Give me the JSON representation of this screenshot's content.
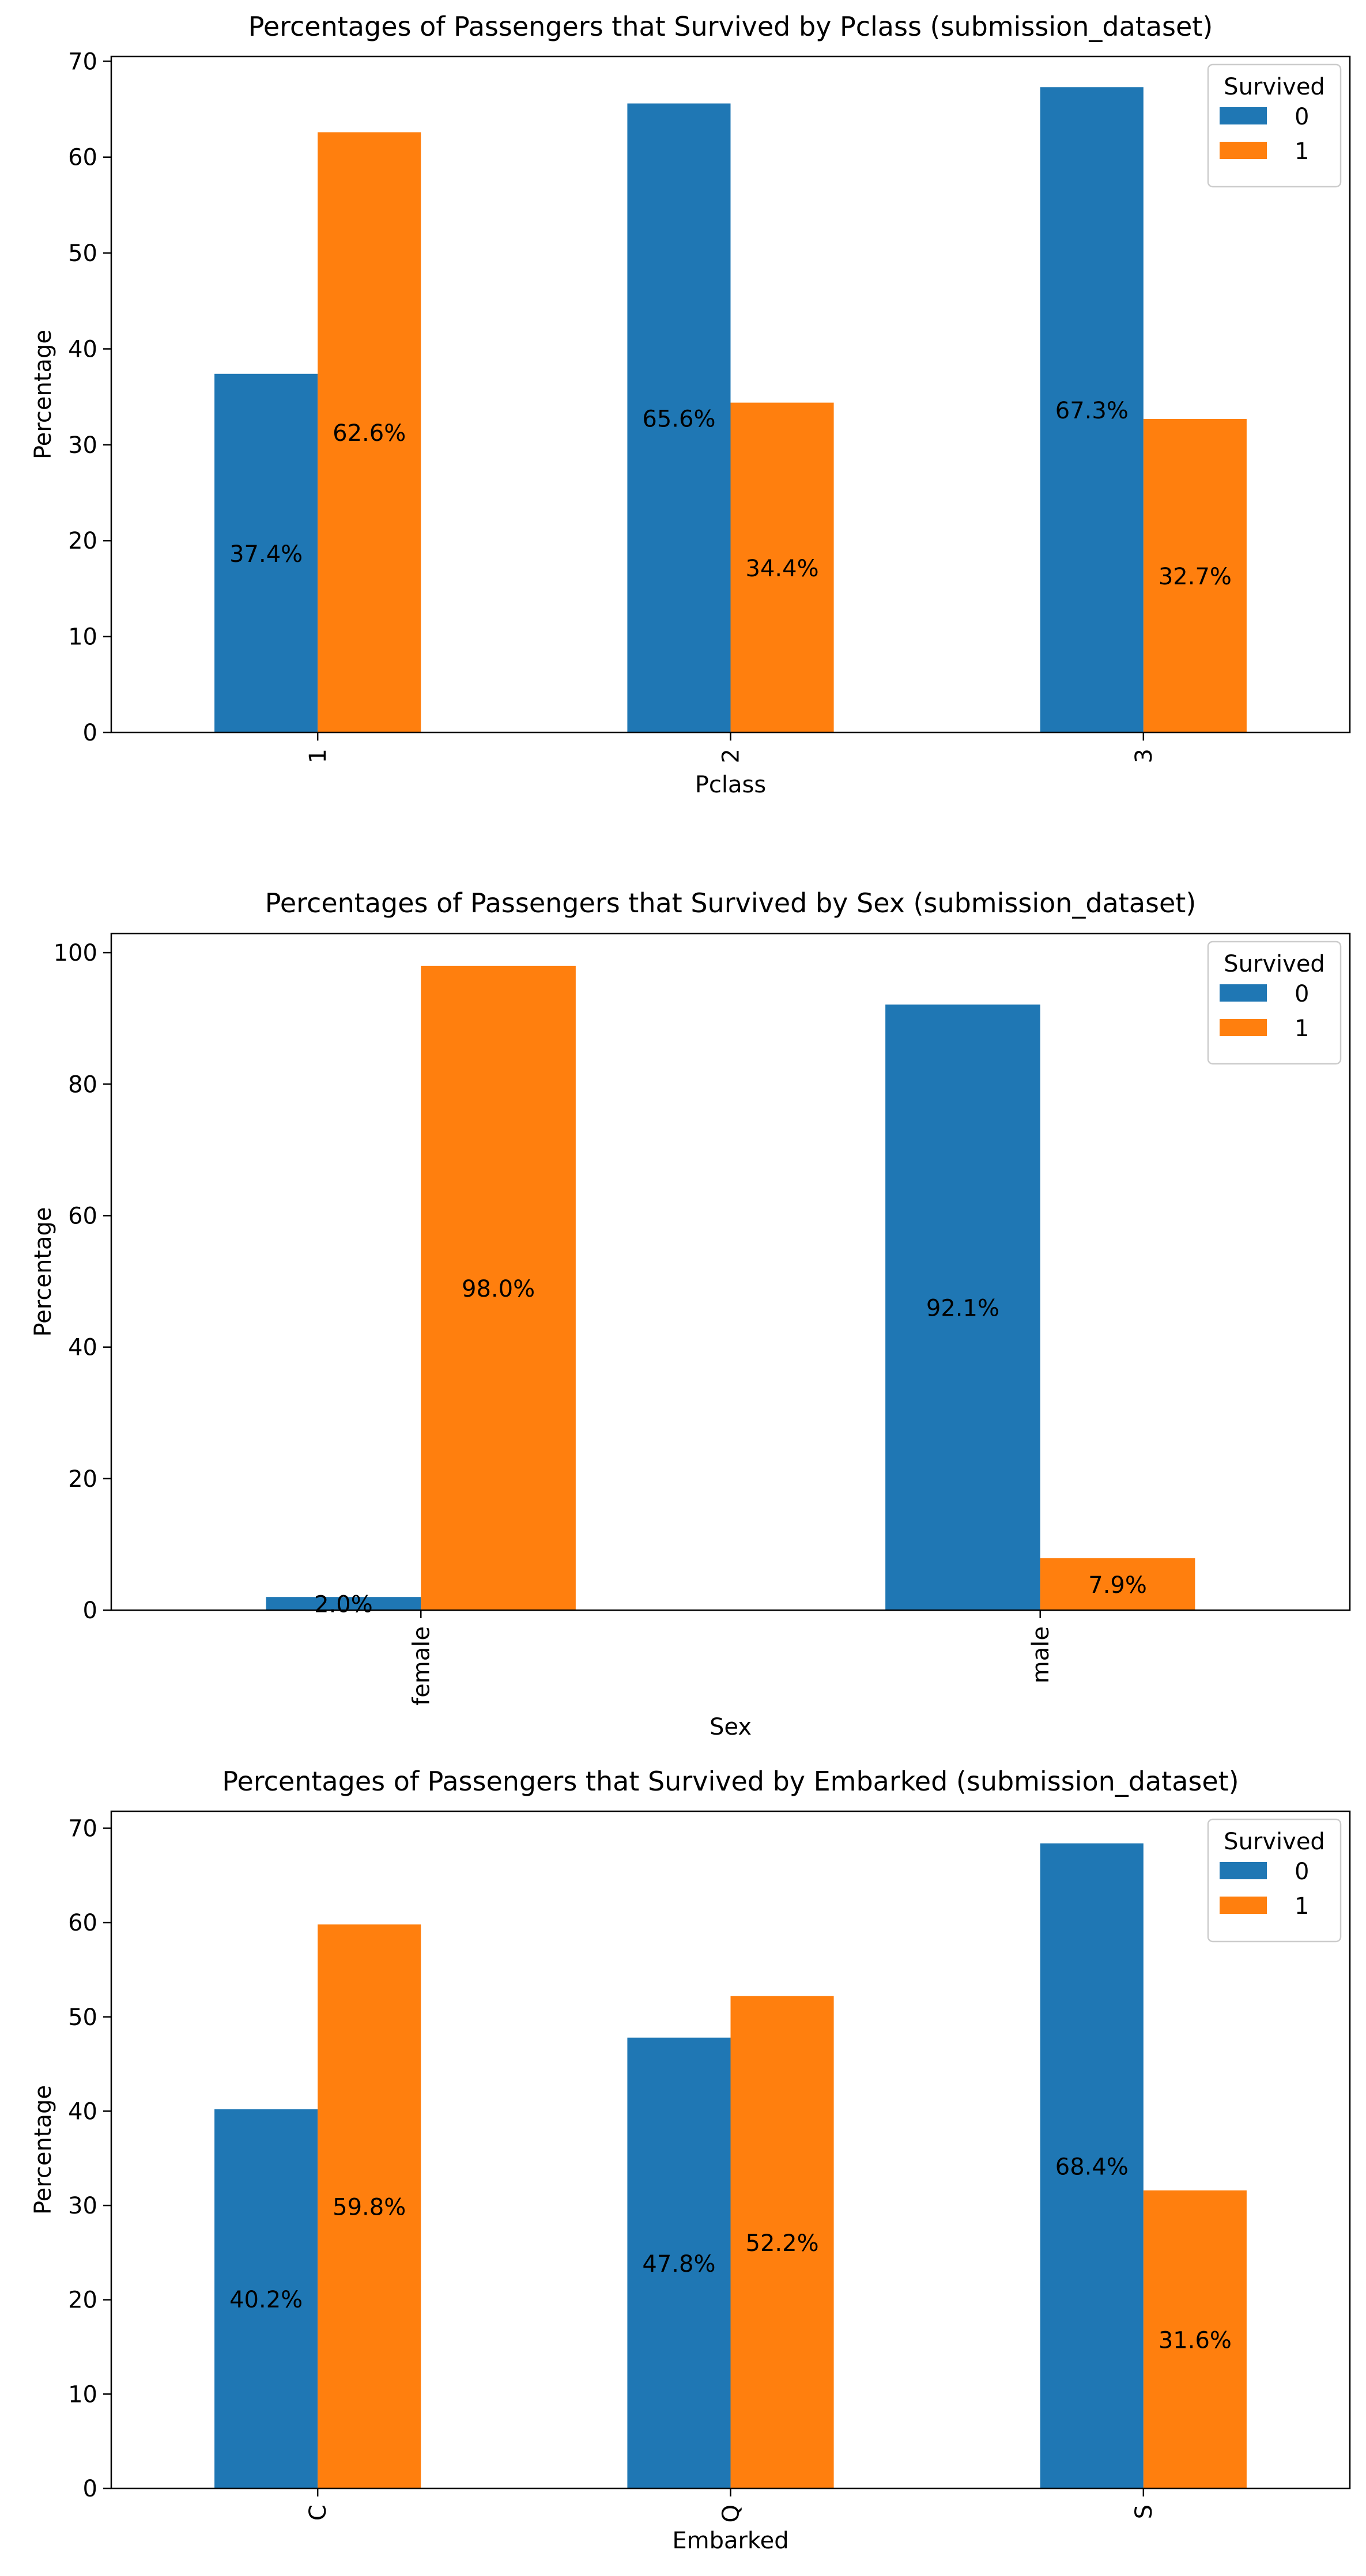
{
  "colors": {
    "series_0": "#1f77b4",
    "series_1": "#ff7f0e",
    "axis": "#000000",
    "legend_border": "#cccccc",
    "background": "#ffffff"
  },
  "chart_data": [
    {
      "type": "bar",
      "title": "Percentages of Passengers that Survived by Pclass (submission_dataset)",
      "xlabel": "Pclass",
      "ylabel": "Percentage",
      "categories": [
        "1",
        "2",
        "3"
      ],
      "tick_rotation": "vertical",
      "ylim": [
        0,
        70.5
      ],
      "yticks": [
        0,
        10,
        20,
        30,
        40,
        50,
        60,
        70
      ],
      "series": [
        {
          "name": "0",
          "values": [
            37.4,
            65.6,
            67.3
          ],
          "labels": [
            "37.4%",
            "65.6%",
            "67.3%"
          ]
        },
        {
          "name": "1",
          "values": [
            62.6,
            34.4,
            32.7
          ],
          "labels": [
            "62.6%",
            "34.4%",
            "32.7%"
          ]
        }
      ],
      "legend": {
        "title": "Survived",
        "position": "top-right"
      },
      "grid": false
    },
    {
      "type": "bar",
      "title": "Percentages of Passengers that Survived by Sex (submission_dataset)",
      "xlabel": "Sex",
      "ylabel": "Percentage",
      "categories": [
        "female",
        "male"
      ],
      "tick_rotation": "vertical",
      "ylim": [
        0,
        102.9
      ],
      "yticks": [
        0,
        20,
        40,
        60,
        80,
        100
      ],
      "series": [
        {
          "name": "0",
          "values": [
            2.0,
            92.1
          ],
          "labels": [
            "2.0%",
            "92.1%"
          ]
        },
        {
          "name": "1",
          "values": [
            98.0,
            7.9
          ],
          "labels": [
            "98.0%",
            "7.9%"
          ]
        }
      ],
      "legend": {
        "title": "Survived",
        "position": "top-right"
      },
      "grid": false
    },
    {
      "type": "bar",
      "title": "Percentages of Passengers that Survived by Embarked (submission_dataset)",
      "xlabel": "Embarked",
      "ylabel": "Percentage",
      "categories": [
        "C",
        "Q",
        "S"
      ],
      "tick_rotation": "vertical",
      "ylim": [
        0,
        71.8
      ],
      "yticks": [
        0,
        10,
        20,
        30,
        40,
        50,
        60,
        70
      ],
      "series": [
        {
          "name": "0",
          "values": [
            40.2,
            47.8,
            68.4
          ],
          "labels": [
            "40.2%",
            "47.8%",
            "68.4%"
          ]
        },
        {
          "name": "1",
          "values": [
            59.8,
            52.2,
            31.6
          ],
          "labels": [
            "59.8%",
            "52.2%",
            "31.6%"
          ]
        }
      ],
      "legend": {
        "title": "Survived",
        "position": "top-right"
      },
      "grid": false
    }
  ]
}
